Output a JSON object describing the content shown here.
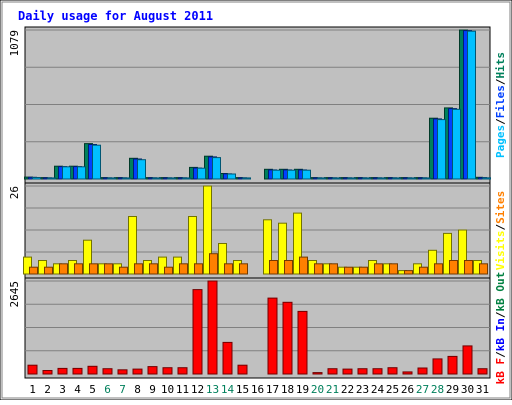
{
  "title": "Daily usage for August 2011",
  "colors": {
    "background": "#c0c0c0",
    "pages": "#00c0ff",
    "files": "#0040ff",
    "hits": "#00805c",
    "visits": "#ffff00",
    "sites": "#ff8000",
    "kbout": "#008040",
    "kbin": "#0000ff",
    "kbf": "#ff0000",
    "title": "#0000ff",
    "weekend_label": "#00805c"
  },
  "chart_data": [
    {
      "type": "bar",
      "name": "pages-files-hits",
      "ymax_label": "1079",
      "ylim": [
        0,
        1079
      ],
      "legend": [
        {
          "text": "Pages",
          "color": "#00c0ff"
        },
        {
          "text": "Files",
          "color": "#0040ff"
        },
        {
          "text": "Hits",
          "color": "#00805c"
        }
      ],
      "categories": [
        "1",
        "2",
        "3",
        "4",
        "5",
        "6",
        "7",
        "8",
        "9",
        "10",
        "11",
        "12",
        "13",
        "14",
        "15",
        "16",
        "17",
        "18",
        "19",
        "20",
        "21",
        "22",
        "23",
        "24",
        "25",
        "26",
        "27",
        "28",
        "29",
        "30",
        "31"
      ],
      "series": [
        {
          "name": "Hits",
          "values": [
            14,
            10,
            93,
            93,
            256,
            10,
            10,
            150,
            10,
            10,
            10,
            84,
            165,
            40,
            10,
            0,
            70,
            70,
            70,
            10,
            10,
            10,
            10,
            10,
            10,
            10,
            10,
            440,
            515,
            1079,
            12
          ]
        },
        {
          "name": "Files",
          "values": [
            12,
            9,
            90,
            90,
            250,
            9,
            9,
            145,
            9,
            9,
            9,
            80,
            160,
            38,
            9,
            0,
            66,
            66,
            66,
            9,
            9,
            9,
            9,
            9,
            9,
            9,
            9,
            435,
            510,
            1075,
            10
          ]
        },
        {
          "name": "Pages",
          "values": [
            11,
            8,
            88,
            88,
            245,
            8,
            8,
            140,
            8,
            8,
            8,
            78,
            155,
            36,
            8,
            0,
            64,
            64,
            64,
            8,
            8,
            8,
            8,
            8,
            8,
            8,
            8,
            430,
            505,
            1070,
            9
          ]
        }
      ]
    },
    {
      "type": "bar",
      "name": "visits-sites",
      "ymax_label": "26",
      "ylim": [
        0,
        26
      ],
      "legend": [
        {
          "text": "Visits",
          "color": "#ffff00"
        },
        {
          "text": "Sites",
          "color": "#ff8000"
        }
      ],
      "categories": [
        "1",
        "2",
        "3",
        "4",
        "5",
        "6",
        "7",
        "8",
        "9",
        "10",
        "11",
        "12",
        "13",
        "14",
        "15",
        "16",
        "17",
        "18",
        "19",
        "20",
        "21",
        "22",
        "23",
        "24",
        "25",
        "26",
        "27",
        "28",
        "29",
        "30",
        "31"
      ],
      "series": [
        {
          "name": "Visits",
          "values": [
            5,
            4,
            3,
            4,
            10,
            3,
            3,
            17,
            4,
            5,
            5,
            17,
            26,
            9,
            4,
            0,
            16,
            15,
            18,
            4,
            3,
            2,
            2,
            4,
            3,
            1,
            3,
            7,
            12,
            13,
            4
          ]
        },
        {
          "name": "Sites",
          "values": [
            2,
            2,
            3,
            3,
            3,
            3,
            2,
            3,
            3,
            2,
            3,
            3,
            6,
            3,
            3,
            0,
            4,
            4,
            5,
            3,
            3,
            2,
            2,
            3,
            3,
            1,
            2,
            3,
            4,
            4,
            3
          ]
        }
      ]
    },
    {
      "type": "bar",
      "name": "kbf-kbin-kbout",
      "ymax_label": "2645",
      "ylim": [
        0,
        2645
      ],
      "legend": [
        {
          "text": "kB F",
          "color": "#ff0000"
        },
        {
          "text": "kB In",
          "color": "#0000ff"
        },
        {
          "text": "kB Out",
          "color": "#008040"
        }
      ],
      "categories": [
        "1",
        "2",
        "3",
        "4",
        "5",
        "6",
        "7",
        "8",
        "9",
        "10",
        "11",
        "12",
        "13",
        "14",
        "15",
        "16",
        "17",
        "18",
        "19",
        "20",
        "21",
        "22",
        "23",
        "24",
        "25",
        "26",
        "27",
        "28",
        "29",
        "30",
        "31"
      ],
      "series": [
        {
          "name": "kB F",
          "values": [
            250,
            100,
            160,
            160,
            220,
            150,
            120,
            140,
            210,
            180,
            180,
            2400,
            2645,
            900,
            250,
            0,
            2160,
            2040,
            1780,
            40,
            150,
            140,
            150,
            150,
            180,
            60,
            170,
            430,
            500,
            800,
            150
          ]
        }
      ]
    }
  ],
  "x_labels": {
    "days": [
      "1",
      "2",
      "3",
      "4",
      "5",
      "6",
      "7",
      "8",
      "9",
      "10",
      "11",
      "12",
      "13",
      "14",
      "15",
      "16",
      "17",
      "18",
      "19",
      "20",
      "21",
      "22",
      "23",
      "24",
      "25",
      "26",
      "27",
      "28",
      "29",
      "30",
      "31"
    ],
    "weekend_days": [
      "6",
      "7",
      "13",
      "14",
      "20",
      "21",
      "27",
      "28"
    ]
  }
}
